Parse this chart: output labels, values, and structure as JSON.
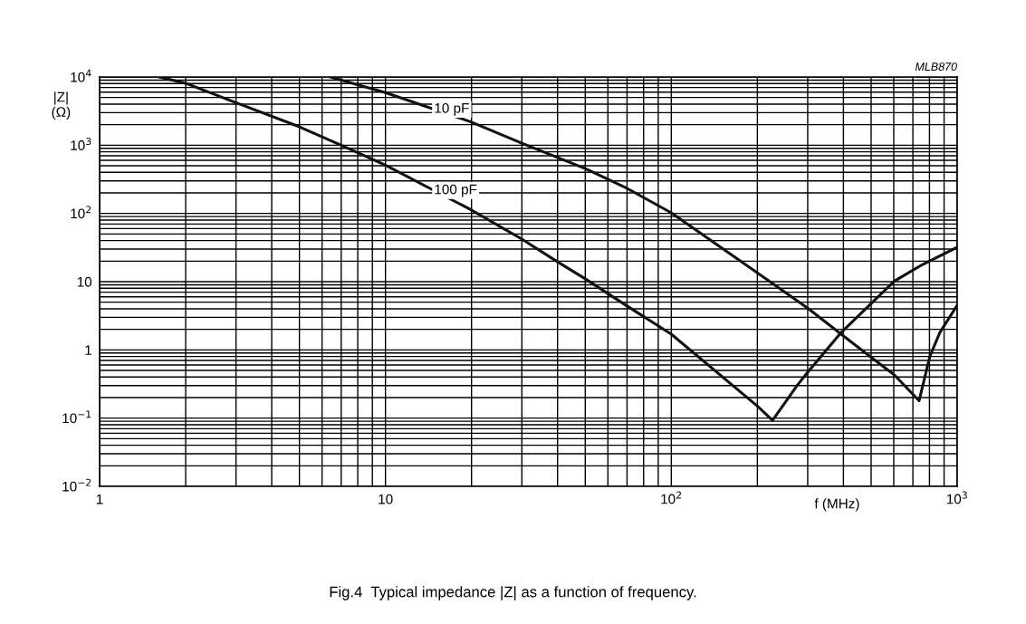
{
  "chart_data": {
    "type": "line",
    "log": "xy",
    "xlabel": "f (MHz)",
    "ylabel": "|Z|\n(Ω)",
    "xlim": [
      1,
      1000
    ],
    "ylim": [
      0.01,
      10000
    ],
    "xticks": [
      1,
      10,
      {
        "value": 100,
        "label": "10$^{2}$"
      },
      {
        "value": 1000,
        "label": "10$^{3}$"
      }
    ],
    "yticks": [
      {
        "value": 0.01,
        "label": "10$^{−2}$"
      },
      {
        "value": 0.1,
        "label": "10$^{−1}$"
      },
      1,
      10,
      {
        "value": 100,
        "label": "10$^{2}$"
      },
      {
        "value": 1000,
        "label": "10$^{3}$"
      },
      {
        "value": 10000,
        "label": "10$^{4}$"
      }
    ],
    "grid": true,
    "legend": false,
    "marker": "none",
    "line_style": "solid",
    "series": [
      {
        "name": "10 pF",
        "color": "#111111",
        "x": [
          6.4,
          10,
          20,
          30,
          50,
          70,
          100,
          200,
          300,
          390,
          494,
          603,
          736,
          803,
          870,
          1000
        ],
        "values": [
          10000,
          5900,
          2180,
          1070,
          455,
          233,
          102,
          13.5,
          4.1,
          1.74,
          0.81,
          0.43,
          0.18,
          0.81,
          1.8,
          4.5
        ]
      },
      {
        "name": "100 pF",
        "color": "#111111",
        "x": [
          1.62,
          2,
          3,
          5,
          7,
          10,
          20,
          30,
          40,
          50,
          70,
          100,
          200,
          226,
          277,
          300,
          390,
          603,
          760,
          1000
        ],
        "values": [
          10000,
          8100,
          4200,
          1860,
          1000,
          510,
          112,
          42,
          19.5,
          11,
          4.4,
          1.7,
          0.15,
          0.093,
          0.31,
          0.47,
          1.74,
          10.2,
          18,
          32
        ]
      }
    ],
    "annotations": [
      "MLB870",
      "Fig.4  Typical impedance |Z| as a function of frequency."
    ]
  }
}
